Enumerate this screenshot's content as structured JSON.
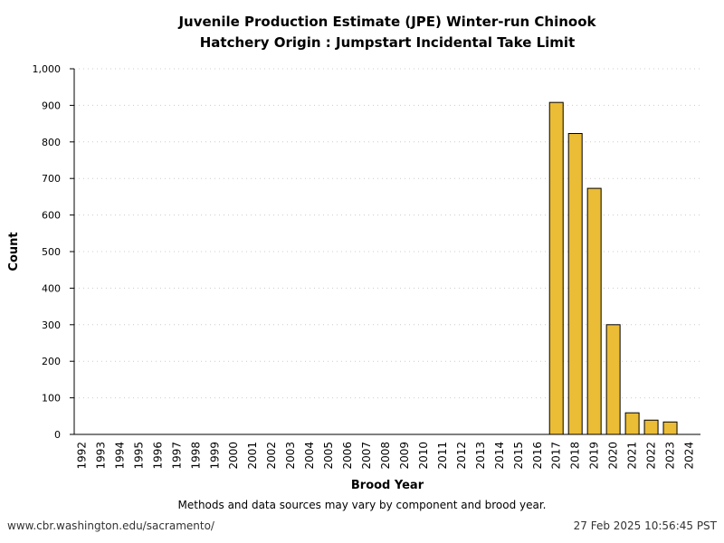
{
  "chart_data": {
    "type": "bar",
    "title": "Juvenile Production Estimate (JPE) Winter-run Chinook",
    "subtitle": "Hatchery Origin : Jumpstart Incidental Take Limit",
    "xlabel": "Brood Year",
    "ylabel": "Count",
    "ylim": [
      0,
      1000
    ],
    "yticks": [
      "0",
      "100",
      "200",
      "300",
      "400",
      "500",
      "600",
      "700",
      "800",
      "900",
      "1,000"
    ],
    "grid": true,
    "categories": [
      "1992",
      "1993",
      "1994",
      "1995",
      "1996",
      "1997",
      "1998",
      "1999",
      "2000",
      "2001",
      "2002",
      "2003",
      "2004",
      "2005",
      "2006",
      "2007",
      "2008",
      "2009",
      "2010",
      "2011",
      "2012",
      "2013",
      "2014",
      "2015",
      "2016",
      "2017",
      "2018",
      "2019",
      "2020",
      "2021",
      "2022",
      "2023",
      "2024"
    ],
    "values": [
      null,
      null,
      null,
      null,
      null,
      null,
      null,
      null,
      null,
      null,
      null,
      null,
      null,
      null,
      null,
      null,
      null,
      null,
      null,
      null,
      null,
      null,
      null,
      null,
      null,
      908,
      823,
      673,
      300,
      59,
      39,
      34,
      null
    ],
    "bar_color": "#ebbc35",
    "note": "Methods and data sources may vary by component and brood year."
  },
  "footer": {
    "url": "www.cbr.washington.edu/sacramento/",
    "timestamp": "27 Feb 2025 10:56:45 PST"
  }
}
